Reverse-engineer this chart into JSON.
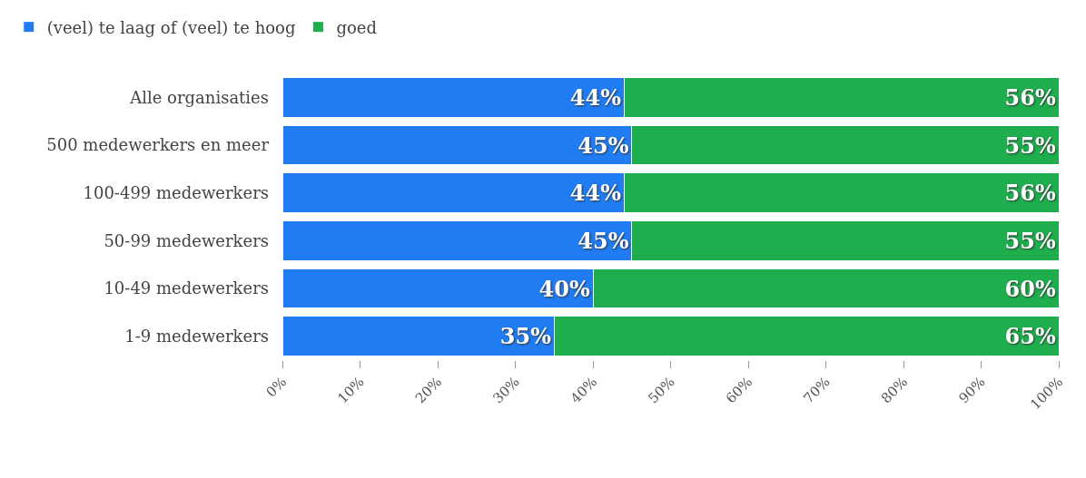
{
  "chart_data": {
    "type": "bar",
    "orientation": "horizontal",
    "stacked": true,
    "legend": "top left",
    "categories": [
      "Alle organisaties",
      "500 medewerkers en meer",
      "100-499 medewerkers",
      "50-99 medewerkers",
      "10-49 medewerkers",
      "1-9 medewerkers"
    ],
    "series": [
      {
        "name": "(veel) te laag of (veel) te hoog",
        "color": "#1f7cf2",
        "values": [
          44,
          45,
          44,
          45,
          40,
          35
        ],
        "value_labels": [
          "44%",
          "45%",
          "44%",
          "45%",
          "40%",
          "35%"
        ]
      },
      {
        "name": "goed",
        "color": "#1eae4e",
        "values": [
          56,
          55,
          56,
          55,
          60,
          65
        ],
        "value_labels": [
          "56%",
          "55%",
          "56%",
          "55%",
          "60%",
          "65%"
        ]
      }
    ],
    "xlim": [
      0,
      100
    ],
    "xticks": [
      {
        "value": 0,
        "label": "0%"
      },
      {
        "value": 10,
        "label": "10%"
      },
      {
        "value": 20,
        "label": "20%"
      },
      {
        "value": 30,
        "label": "30%"
      },
      {
        "value": 40,
        "label": "40%"
      },
      {
        "value": 50,
        "label": "50%"
      },
      {
        "value": 60,
        "label": "60%"
      },
      {
        "value": 70,
        "label": "70%"
      },
      {
        "value": 80,
        "label": "80%"
      },
      {
        "value": 90,
        "label": "90%"
      },
      {
        "value": 100,
        "label": "100%"
      }
    ]
  }
}
